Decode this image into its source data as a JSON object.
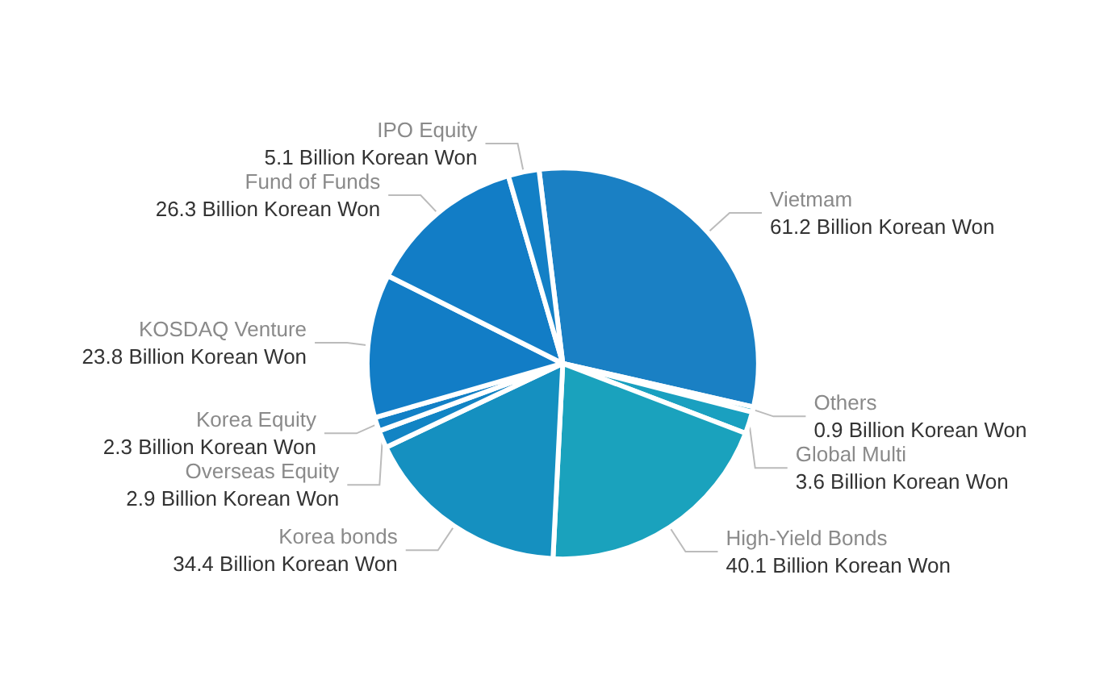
{
  "chart_data": {
    "type": "pie",
    "categories": [
      "Vietmam",
      "Others",
      "Global Multi",
      "High-Yield Bonds",
      "Korea bonds",
      "Overseas Equity",
      "Korea Equity",
      "KOSDAQ Venture",
      "Fund of Funds",
      "IPO Equity"
    ],
    "values": [
      61.2,
      0.9,
      3.6,
      40.1,
      34.4,
      2.9,
      2.3,
      23.8,
      26.3,
      5.1
    ],
    "value_labels": [
      "61.2 Billion Korean Won",
      "0.9 Billion Korean Won",
      "3.6 Billion Korean Won",
      "40.1 Billion Korean Won",
      "34.4 Billion Korean Won",
      "2.9 Billion Korean Won",
      "2.3 Billion Korean Won",
      "23.8 Billion Korean Won",
      "26.3 Billion Korean Won",
      "5.1 Billion Korean Won"
    ],
    "colors": [
      "#1a80c4",
      "#17a3c0",
      "#1aa0c0",
      "#1aa2bd",
      "#1590c0",
      "#1284c4",
      "#1280c6",
      "#127dc6",
      "#127dc6",
      "#1380c6"
    ],
    "legend": false
  }
}
